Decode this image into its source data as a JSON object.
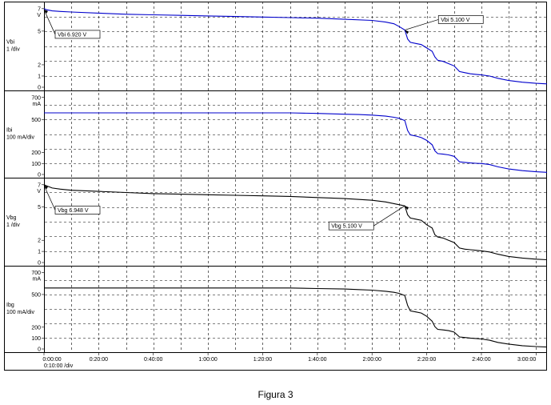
{
  "caption": "Figura 3",
  "time_axis": {
    "ticks": [
      "0:00:00",
      "0:20:00",
      "0:40:00",
      "1:00:00",
      "1:20:00",
      "1:40:00",
      "2:00:00",
      "2:20:00",
      "2:40:00",
      "3:00:00"
    ],
    "division": "0:10:00 /div"
  },
  "chart_data": [
    {
      "type": "line",
      "label": [
        "Vbi",
        "1 /div"
      ],
      "unit": "V",
      "color": "#0000cc",
      "ylim": [
        0,
        7.2
      ],
      "yticks": [
        0,
        1,
        2,
        5,
        7
      ],
      "x": [
        0,
        1,
        3,
        6,
        10,
        20,
        30,
        40,
        50,
        60,
        70,
        80,
        90,
        100,
        110,
        120,
        125,
        128,
        130,
        132,
        133,
        134,
        136,
        138,
        140,
        142,
        143,
        144,
        146,
        148,
        150,
        152,
        154,
        156,
        158,
        160,
        163,
        166,
        170,
        175,
        180,
        184
      ],
      "values": [
        7.0,
        6.9,
        6.8,
        6.75,
        6.7,
        6.6,
        6.5,
        6.45,
        6.4,
        6.35,
        6.3,
        6.25,
        6.2,
        6.15,
        6.05,
        5.95,
        5.8,
        5.65,
        5.4,
        5.1,
        4.3,
        4.0,
        3.9,
        3.8,
        3.5,
        3.2,
        2.7,
        2.4,
        2.3,
        2.1,
        1.9,
        1.4,
        1.3,
        1.2,
        1.15,
        1.1,
        1.0,
        0.8,
        0.6,
        0.45,
        0.35,
        0.3
      ],
      "annotations": [
        {
          "text": "Vbi 6.920 V",
          "x": 0,
          "y": 6.92
        },
        {
          "text": "Vbi 5.100 V",
          "x": 132,
          "y": 5.1
        }
      ]
    },
    {
      "type": "line",
      "label": [
        "Ibi",
        "100 mA/div"
      ],
      "unit": "mA",
      "color": "#0000cc",
      "ylim": [
        0,
        720
      ],
      "yticks": [
        0,
        100,
        200,
        500,
        700
      ],
      "x": [
        0,
        1,
        5,
        20,
        40,
        60,
        80,
        90,
        100,
        110,
        115,
        120,
        125,
        128,
        130,
        132,
        133,
        134,
        136,
        138,
        140,
        142,
        143,
        144,
        146,
        148,
        150,
        152,
        154,
        156,
        158,
        160,
        163,
        166,
        170,
        175,
        180,
        184
      ],
      "values": [
        560,
        560,
        560,
        560,
        560,
        560,
        560,
        560,
        555,
        548,
        545,
        540,
        530,
        520,
        510,
        490,
        400,
        360,
        350,
        335,
        310,
        270,
        215,
        190,
        185,
        178,
        165,
        115,
        110,
        105,
        102,
        100,
        90,
        70,
        50,
        35,
        25,
        20
      ],
      "annotations": []
    },
    {
      "type": "line",
      "label": [
        "Vbg",
        "1 /div"
      ],
      "unit": "V",
      "color": "#000000",
      "ylim": [
        0,
        7.2
      ],
      "yticks": [
        0,
        1,
        2,
        5,
        7
      ],
      "x": [
        0,
        1,
        3,
        6,
        10,
        20,
        30,
        40,
        50,
        60,
        70,
        80,
        90,
        100,
        110,
        120,
        125,
        128,
        130,
        132,
        133,
        134,
        136,
        138,
        140,
        142,
        143,
        144,
        146,
        148,
        150,
        152,
        154,
        156,
        158,
        160,
        163,
        166,
        170,
        175,
        180,
        184
      ],
      "values": [
        7.0,
        6.9,
        6.7,
        6.6,
        6.5,
        6.4,
        6.3,
        6.2,
        6.15,
        6.1,
        6.05,
        6.0,
        5.95,
        5.85,
        5.75,
        5.6,
        5.45,
        5.3,
        5.2,
        5.1,
        4.3,
        4.0,
        3.9,
        3.8,
        3.4,
        3.1,
        2.5,
        2.3,
        2.2,
        2.0,
        1.8,
        1.3,
        1.2,
        1.15,
        1.1,
        1.05,
        0.95,
        0.75,
        0.55,
        0.4,
        0.3,
        0.25
      ],
      "annotations": [
        {
          "text": "Vbg 6.948 V",
          "x": 0,
          "y": 6.948
        },
        {
          "text": "Vbg 5.100 V",
          "x": 132,
          "y": 5.1
        }
      ]
    },
    {
      "type": "line",
      "label": [
        "Ibg",
        "100 mA/div"
      ],
      "unit": "mA",
      "color": "#000000",
      "ylim": [
        0,
        720
      ],
      "yticks": [
        0,
        100,
        200,
        500,
        700
      ],
      "x": [
        0,
        1,
        5,
        20,
        40,
        60,
        80,
        90,
        100,
        110,
        115,
        120,
        125,
        128,
        130,
        132,
        133,
        134,
        136,
        138,
        140,
        142,
        143,
        144,
        146,
        148,
        150,
        152,
        154,
        156,
        158,
        160,
        163,
        166,
        170,
        175,
        180,
        184
      ],
      "values": [
        560,
        560,
        560,
        560,
        560,
        560,
        560,
        560,
        555,
        550,
        545,
        540,
        530,
        520,
        510,
        490,
        400,
        350,
        340,
        330,
        300,
        255,
        205,
        180,
        175,
        168,
        155,
        110,
        105,
        100,
        96,
        92,
        80,
        60,
        45,
        30,
        22,
        18
      ],
      "annotations": []
    }
  ]
}
